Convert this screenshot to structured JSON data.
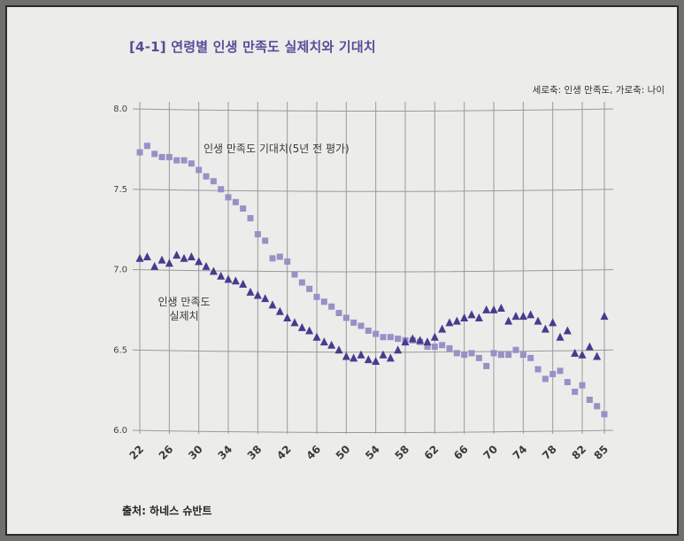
{
  "title": "[4-1] 연령별 인생 만족도 실제치와 기대치",
  "axis_note": "세로축: 인생 만족도, 가로축: 나이",
  "source": "출처: 하네스 슈반트",
  "colors": {
    "expected": "#9a8fc6",
    "actual": "#4a3a8e",
    "grid": "#9a9a9a",
    "title": "#5b4a98"
  },
  "chart_data": {
    "type": "scatter",
    "title": "[4-1] 연령별 인생 만족도 실제치와 기대치",
    "xlabel": "가로축: 나이",
    "ylabel": "세로축: 인생 만족도",
    "ylim": [
      6.0,
      8.0
    ],
    "xlim": [
      22,
      85
    ],
    "yticks": [
      "6.0",
      "6.5",
      "7.0",
      "7.5",
      "8.0"
    ],
    "xticks": [
      "22",
      "26",
      "30",
      "34",
      "38",
      "42",
      "46",
      "50",
      "54",
      "58",
      "62",
      "66",
      "70",
      "74",
      "78",
      "82",
      "85"
    ],
    "grid": true,
    "series": [
      {
        "name": "인생 만족도 기대치(5년 전 평가)",
        "marker": "square",
        "x": [
          22,
          23,
          24,
          25,
          26,
          27,
          28,
          29,
          30,
          31,
          32,
          33,
          34,
          35,
          36,
          37,
          38,
          39,
          40,
          41,
          42,
          43,
          44,
          45,
          46,
          47,
          48,
          49,
          50,
          51,
          52,
          53,
          54,
          55,
          56,
          57,
          58,
          59,
          60,
          61,
          62,
          63,
          64,
          65,
          66,
          67,
          68,
          69,
          70,
          71,
          72,
          73,
          74,
          75,
          76,
          77,
          78,
          79,
          80,
          81,
          82,
          83,
          84,
          85
        ],
        "values": [
          7.73,
          7.77,
          7.72,
          7.7,
          7.7,
          7.68,
          7.68,
          7.66,
          7.62,
          7.58,
          7.55,
          7.5,
          7.45,
          7.42,
          7.38,
          7.32,
          7.22,
          7.18,
          7.07,
          7.08,
          7.05,
          6.97,
          6.92,
          6.88,
          6.83,
          6.8,
          6.77,
          6.73,
          6.7,
          6.67,
          6.65,
          6.62,
          6.6,
          6.58,
          6.58,
          6.57,
          6.56,
          6.56,
          6.55,
          6.52,
          6.52,
          6.53,
          6.51,
          6.48,
          6.47,
          6.48,
          6.45,
          6.4,
          6.48,
          6.47,
          6.47,
          6.5,
          6.47,
          6.45,
          6.38,
          6.32,
          6.35,
          6.37,
          6.3,
          6.24,
          6.28,
          6.19,
          6.15,
          6.1
        ]
      },
      {
        "name": "인생 만족도 실제치",
        "marker": "triangle",
        "x": [
          22,
          23,
          24,
          25,
          26,
          27,
          28,
          29,
          30,
          31,
          32,
          33,
          34,
          35,
          36,
          37,
          38,
          39,
          40,
          41,
          42,
          43,
          44,
          45,
          46,
          47,
          48,
          49,
          50,
          51,
          52,
          53,
          54,
          55,
          56,
          57,
          58,
          59,
          60,
          61,
          62,
          63,
          64,
          65,
          66,
          67,
          68,
          69,
          70,
          71,
          72,
          73,
          74,
          75,
          76,
          77,
          78,
          79,
          80,
          81,
          82,
          83,
          84,
          85
        ],
        "values": [
          7.07,
          7.08,
          7.02,
          7.06,
          7.04,
          7.09,
          7.07,
          7.08,
          7.05,
          7.02,
          6.99,
          6.96,
          6.94,
          6.93,
          6.91,
          6.86,
          6.84,
          6.82,
          6.78,
          6.74,
          6.7,
          6.67,
          6.64,
          6.62,
          6.58,
          6.55,
          6.53,
          6.5,
          6.46,
          6.45,
          6.47,
          6.44,
          6.43,
          6.47,
          6.45,
          6.5,
          6.55,
          6.57,
          6.56,
          6.55,
          6.58,
          6.63,
          6.67,
          6.68,
          6.7,
          6.72,
          6.7,
          6.75,
          6.75,
          6.76,
          6.68,
          6.71,
          6.71,
          6.72,
          6.68,
          6.63,
          6.67,
          6.58,
          6.62,
          6.48,
          6.47,
          6.52,
          6.46,
          6.71
        ]
      }
    ]
  }
}
